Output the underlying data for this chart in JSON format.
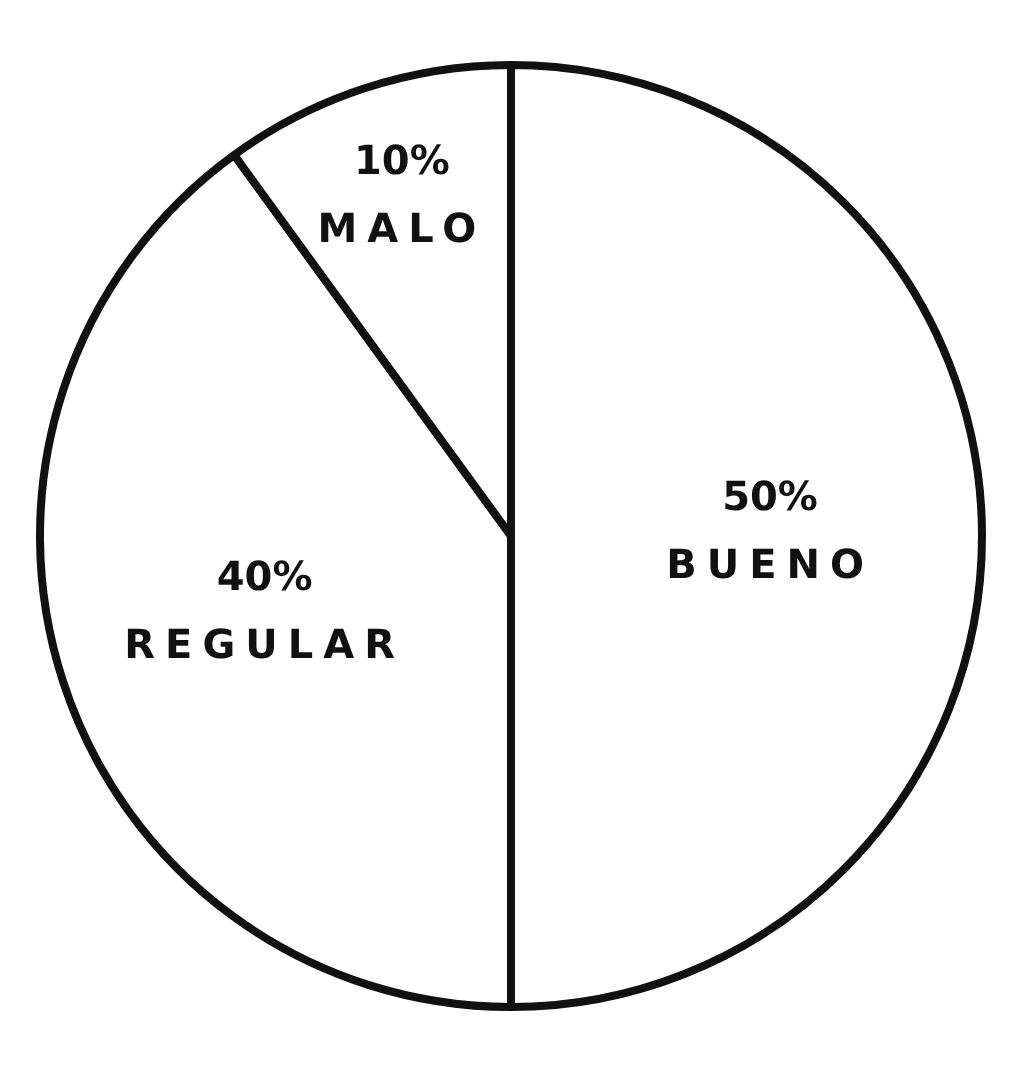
{
  "chart_data": {
    "type": "pie",
    "categories": [
      "BUENO",
      "REGULAR",
      "MALO"
    ],
    "values": [
      50,
      40,
      10
    ],
    "colors": [
      "#ffffff",
      "#ffffff",
      "#ffffff"
    ],
    "value_labels": [
      "50%",
      "40%",
      "10%"
    ],
    "legend": false
  }
}
